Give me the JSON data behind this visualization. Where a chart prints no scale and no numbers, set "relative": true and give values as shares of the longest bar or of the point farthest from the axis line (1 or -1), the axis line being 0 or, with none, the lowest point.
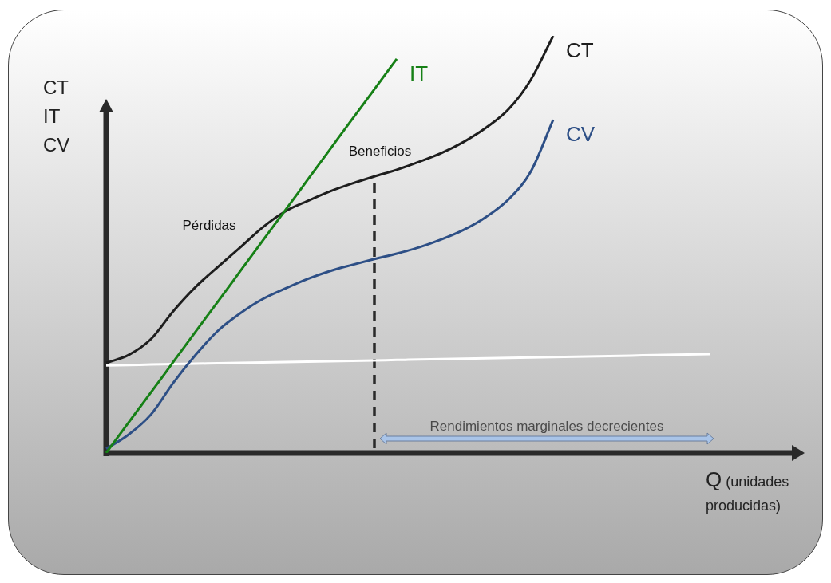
{
  "chart_data": {
    "type": "line",
    "relative": true,
    "ylabel": "CT\nIT\nCV",
    "xlabel": "Q (unidades producidas)",
    "categories": [
      null,
      null,
      null,
      null,
      null,
      null,
      null,
      null,
      null,
      null,
      null,
      null,
      null,
      null,
      null,
      null,
      null,
      null,
      null,
      null,
      null,
      null,
      null,
      null,
      null,
      null,
      null,
      null,
      null,
      null,
      null,
      null
    ],
    "series": [
      {
        "name": "IT",
        "color": "#168016",
        "values": [
          0,
          0.073,
          0.145,
          0.218,
          0.291,
          0.363,
          0.436,
          0.509,
          0.581,
          0.654,
          0.727,
          0.8,
          0.872,
          0.945,
          null,
          null,
          null,
          null,
          null,
          null,
          null,
          null,
          null,
          null,
          null,
          null,
          null,
          null,
          null,
          null,
          null,
          null
        ]
      },
      {
        "name": "CT",
        "color": "#1e1e1e",
        "values": [
          0.216,
          0.235,
          0.273,
          0.34,
          0.398,
          0.446,
          0.493,
          0.541,
          0.579,
          0.604,
          0.627,
          0.646,
          0.663,
          0.679,
          0.698,
          0.719,
          0.746,
          0.78,
          0.824,
          0.895,
          1.0,
          null,
          null,
          null,
          null,
          null,
          null,
          null,
          null,
          null,
          null,
          null
        ]
      },
      {
        "name": "CV",
        "color": "#2d4f86",
        "values": [
          0.01,
          0.044,
          0.092,
          0.168,
          0.235,
          0.293,
          0.335,
          0.369,
          0.394,
          0.417,
          0.436,
          0.451,
          0.465,
          0.478,
          0.493,
          0.512,
          0.535,
          0.566,
          0.608,
          0.675,
          0.799,
          null,
          null,
          null,
          null,
          null,
          null,
          null,
          null,
          null,
          null,
          null
        ]
      },
      {
        "color": "#ffffff",
        "values": [
          0.21,
          0.211,
          0.212,
          0.213,
          0.214,
          0.215,
          0.216,
          0.217,
          0.218,
          0.219,
          0.22,
          0.221,
          0.222,
          0.223,
          0.224,
          0.225,
          0.226,
          0.227,
          0.228,
          0.229,
          0.23,
          0.231,
          0.232,
          0.233,
          0.234,
          0.235,
          0.236,
          0.237,
          null,
          null,
          null,
          null
        ]
      }
    ],
    "annotations": [
      "Pérdidas",
      "Beneficios",
      "Rendimientos marginales decrecientes"
    ],
    "marker": "none",
    "line_style": "solid",
    "legend": false
  }
}
